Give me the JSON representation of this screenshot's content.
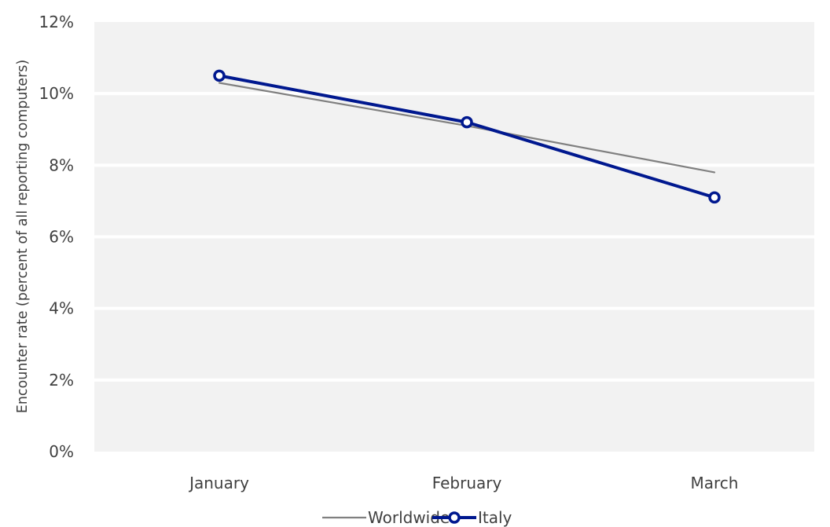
{
  "chart_data": {
    "type": "line",
    "categories": [
      "January",
      "February",
      "March"
    ],
    "ylabel": "Encounter rate (percent of all reporting computers)",
    "xlabel": "",
    "ylim": [
      0,
      12
    ],
    "yticks": [
      "0%",
      "2%",
      "4%",
      "6%",
      "8%",
      "10%",
      "12%"
    ],
    "grid": true,
    "legend_position": "bottom",
    "series": [
      {
        "name": "Worldwide",
        "values": [
          10.3,
          9.1,
          7.8
        ],
        "color": "#808080",
        "marker": "none"
      },
      {
        "name": "Italy",
        "values": [
          10.5,
          9.2,
          7.1
        ],
        "color": "#00188f",
        "marker": "circle-open"
      }
    ],
    "colors": {
      "plot_background": "#f2f2f2",
      "gridline": "#ffffff"
    }
  }
}
